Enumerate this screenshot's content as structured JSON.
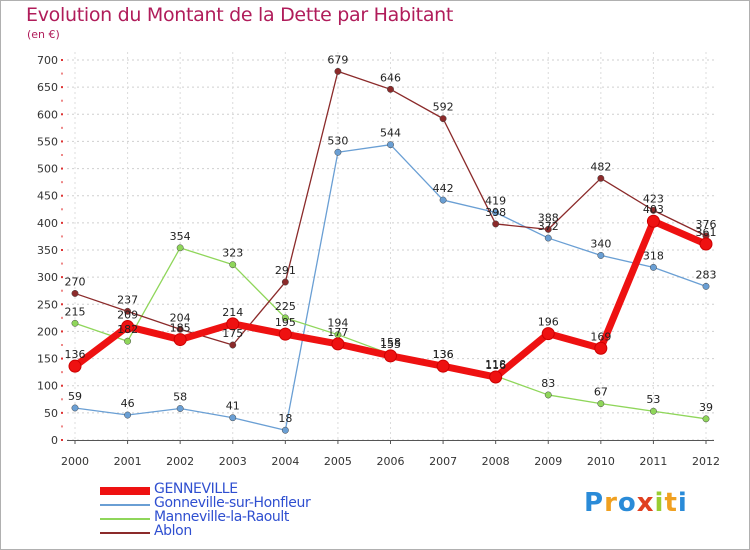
{
  "header": {
    "title": "Evolution du Montant de la Dette par Habitant",
    "subtitle": "(en €)"
  },
  "brand": {
    "text": "Proxiti"
  },
  "chart_data": {
    "type": "line",
    "title": "Evolution du Montant de la Dette par Habitant",
    "ylabel": "(en €)",
    "xlabel": "",
    "x": [
      "2000",
      "2001",
      "2002",
      "2003",
      "2004",
      "2005",
      "2006",
      "2007",
      "2008",
      "2009",
      "2010",
      "2011",
      "2012"
    ],
    "ylim": [
      0,
      700
    ],
    "yticks": [
      0,
      50,
      100,
      150,
      200,
      250,
      300,
      350,
      400,
      450,
      500,
      550,
      600,
      650,
      700
    ],
    "grid": "horizontal-dashed",
    "legend_position": "bottom-left",
    "series": [
      {
        "name": "GENNEVILLE",
        "color": "#ee1111",
        "width": 7,
        "values": [
          136,
          209,
          185,
          214,
          195,
          177,
          155,
          136,
          116,
          196,
          169,
          403,
          361
        ]
      },
      {
        "name": "Gonneville-sur-Honfleur",
        "color": "#6a9fd4",
        "width": 1.3,
        "values": [
          59,
          46,
          58,
          41,
          18,
          530,
          544,
          442,
          419,
          372,
          340,
          318,
          283
        ]
      },
      {
        "name": "Manneville-la-Raoult",
        "color": "#8fd65a",
        "width": 1.3,
        "values": [
          215,
          182,
          354,
          323,
          225,
          194,
          158,
          136,
          118,
          83,
          67,
          53,
          39
        ]
      },
      {
        "name": "Ablon",
        "color": "#8b2a2a",
        "width": 1.3,
        "values": [
          270,
          237,
          204,
          175,
          291,
          679,
          646,
          592,
          398,
          388,
          482,
          423,
          376
        ]
      }
    ]
  }
}
